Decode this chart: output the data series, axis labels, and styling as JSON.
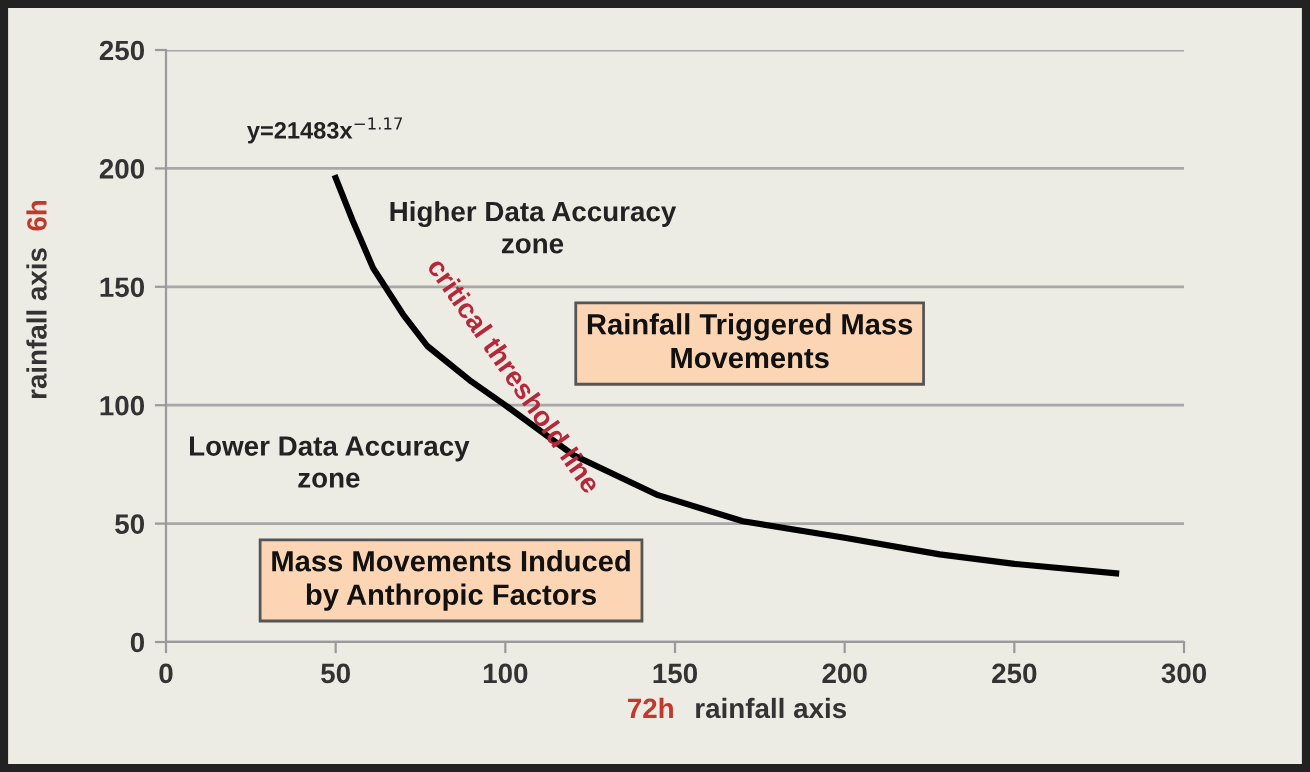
{
  "chart_data": {
    "type": "line",
    "xlabel": "72h rainfall axis",
    "ylabel": "6h rainfall axis",
    "x": [
      50,
      55,
      61,
      70,
      77,
      90,
      100,
      120,
      145,
      170,
      200,
      228,
      250,
      280
    ],
    "series": [
      {
        "color": "#000000",
        "values": [
          196,
          178,
          158,
          138,
          125,
          110,
          100,
          79,
          62,
          51,
          44,
          37,
          33,
          29
        ]
      }
    ],
    "xlim": [
      0,
      300
    ],
    "xticks": [
      0,
      50,
      100,
      150,
      200,
      250,
      300
    ],
    "ylim": [
      0,
      250
    ],
    "yticks": [
      0,
      50,
      100,
      150,
      200,
      250
    ],
    "grid": "y",
    "marker": "none",
    "line_style": "solid",
    "annotations": [
      "y=21483x$^{−1.17}$",
      "Higher Data Accuracy\nzone",
      "Rainfall Triggered Mass\nMovements",
      "critical threshold line",
      "Lower Data Accuracy\nzone",
      "Mass Movements Induced\nby Anthropic Factors"
    ]
  }
}
